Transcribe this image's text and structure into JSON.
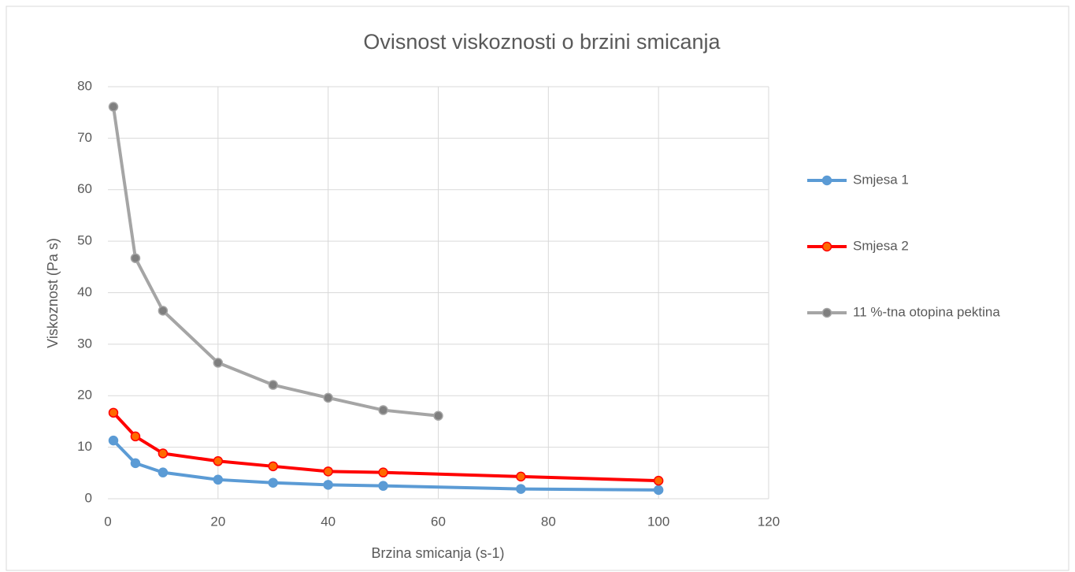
{
  "chart_data": {
    "type": "line",
    "title": "Ovisnost viskoznosti o brzini smicanja",
    "x_label": "Brzina smicanja (s-1)",
    "y_label": "Viskoznost (Pa s)",
    "xlim": [
      0,
      120
    ],
    "xticks": [
      0,
      20,
      40,
      60,
      80,
      100,
      120
    ],
    "ylim": [
      0,
      80
    ],
    "yticks": [
      0,
      10,
      20,
      30,
      40,
      50,
      60,
      70,
      80
    ],
    "grid": true,
    "legend": "right",
    "series": [
      {
        "name": "Smjesa 1",
        "color": "#5b9bd5",
        "marker_color": "#5b9bd5",
        "x": [
          1,
          5,
          10,
          20,
          30,
          40,
          50,
          75,
          100
        ],
        "values": [
          11.3,
          6.9,
          5.1,
          3.7,
          3.1,
          2.7,
          2.5,
          1.9,
          1.7
        ]
      },
      {
        "name": "Smjesa 2",
        "color": "#ff0000",
        "marker_color": "#ff6a00",
        "x": [
          1,
          5,
          10,
          20,
          30,
          40,
          50,
          75,
          100
        ],
        "values": [
          16.7,
          12.1,
          8.8,
          7.3,
          6.3,
          5.3,
          5.1,
          4.3,
          3.5
        ]
      },
      {
        "name": "11 %-tna otopina pektina",
        "color": "#a5a5a5",
        "marker_color": "#7f7f7f",
        "x": [
          1,
          5,
          10,
          20,
          30,
          40,
          50,
          60
        ],
        "values": [
          76.1,
          46.7,
          36.5,
          26.4,
          22.1,
          19.6,
          17.2,
          16.1
        ]
      }
    ]
  }
}
